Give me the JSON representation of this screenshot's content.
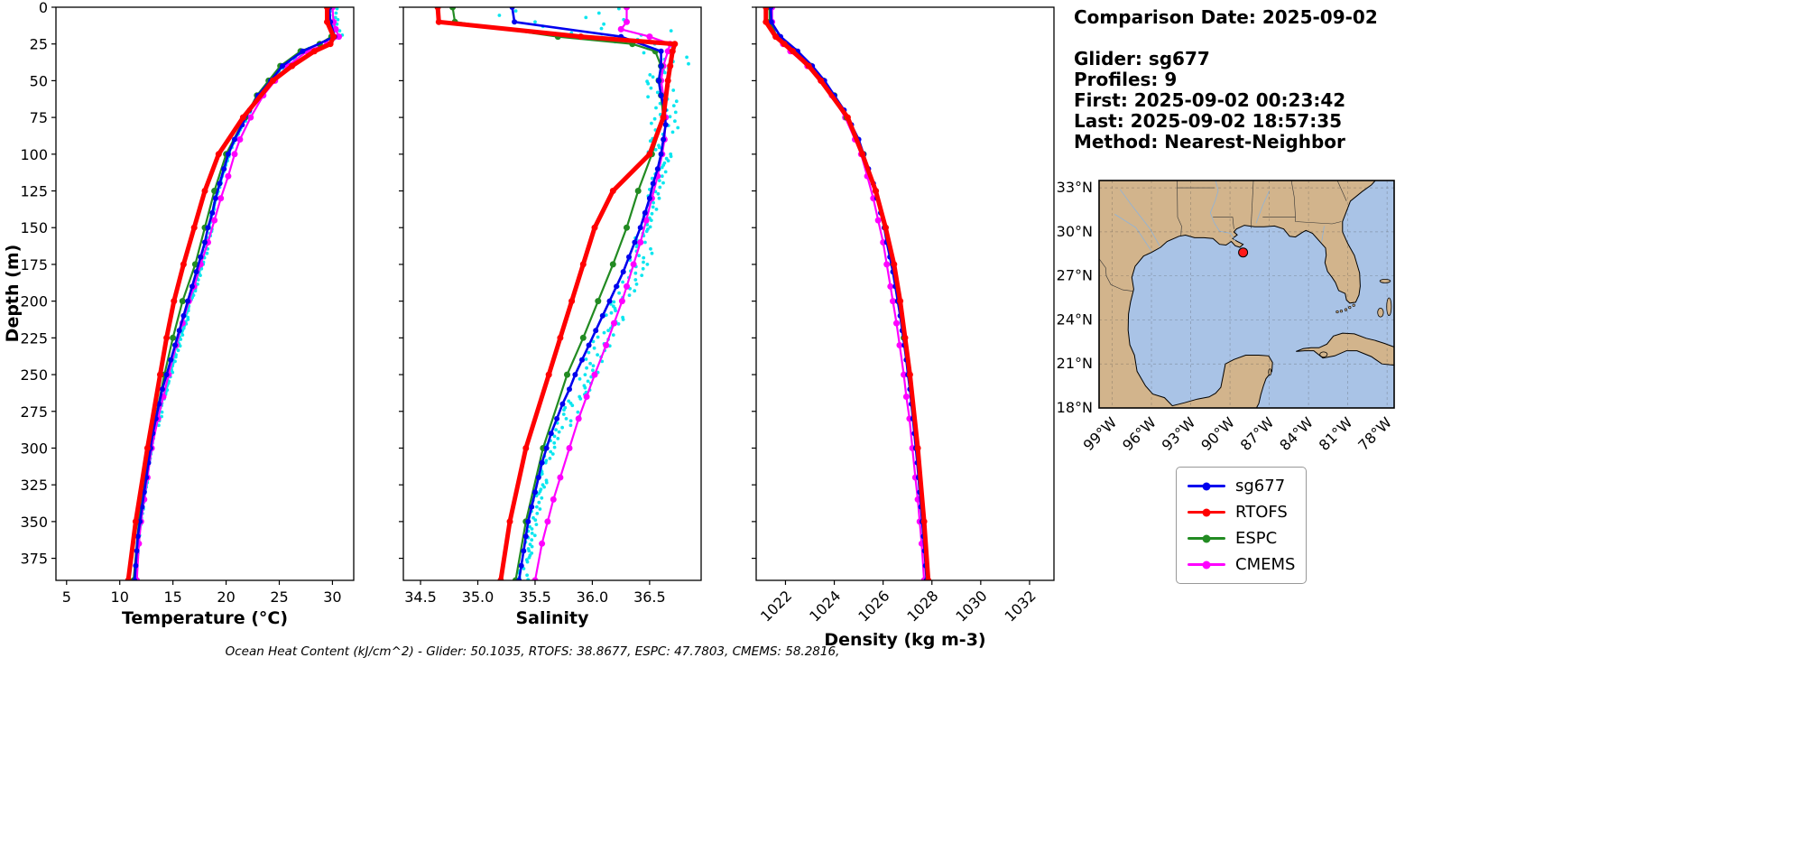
{
  "info": {
    "comparison_date": "Comparison Date: 2025-09-02",
    "glider": "Glider: sg677",
    "profiles": "Profiles: 9",
    "first": "First: 2025-09-02 00:23:42",
    "last": "Last: 2025-09-02 18:57:35",
    "method": "Method: Nearest-Neighbor"
  },
  "footer": {
    "text": "Ocean Heat Content (kJ/cm^2) - Glider: 50.1035,  RTOFS: 38.8677,  ESPC: 47.7803,  CMEMS: 58.2816,"
  },
  "legend": {
    "entries": [
      {
        "label": "sg677",
        "color": "#0000ee"
      },
      {
        "label": "RTOFS",
        "color": "#ff0000"
      },
      {
        "label": "ESPC",
        "color": "#228b22"
      },
      {
        "label": "CMEMS",
        "color": "#ff00ff"
      }
    ]
  },
  "map": {
    "ocean_color": "#a9c3e6",
    "land_color": "#d2b48c",
    "marker": {
      "lon": -89.0,
      "lat": 28.6,
      "color": "#ff1a1a"
    },
    "lat_ticks": [
      {
        "v": 33,
        "label": "33°N"
      },
      {
        "v": 30,
        "label": "30°N"
      },
      {
        "v": 27,
        "label": "27°N"
      },
      {
        "v": 24,
        "label": "24°N"
      },
      {
        "v": 21,
        "label": "21°N"
      },
      {
        "v": 18,
        "label": "18°N"
      }
    ],
    "lon_ticks": [
      {
        "v": -99,
        "label": "99°W"
      },
      {
        "v": -96,
        "label": "96°W"
      },
      {
        "v": -93,
        "label": "93°W"
      },
      {
        "v": -90,
        "label": "90°W"
      },
      {
        "v": -87,
        "label": "87°W"
      },
      {
        "v": -84,
        "label": "84°W"
      },
      {
        "v": -81,
        "label": "81°W"
      },
      {
        "v": -78,
        "label": "78°W"
      }
    ]
  },
  "chart_data": {
    "type": "line",
    "depth_label": "Depth (m)",
    "depth_lim": [
      0,
      390
    ],
    "depth_ticks": [
      0,
      25,
      50,
      75,
      100,
      125,
      150,
      175,
      200,
      225,
      250,
      275,
      300,
      325,
      350,
      375
    ],
    "panels": [
      {
        "key": "temperature",
        "xlabel": "Temperature (°C)",
        "xlim": [
          4,
          32
        ],
        "xticks": [
          5,
          10,
          15,
          20,
          25,
          30
        ],
        "xtick_labels": [
          "5",
          "10",
          "15",
          "20",
          "25",
          "30"
        ],
        "rotate_ticks": false
      },
      {
        "key": "salinity",
        "xlabel": "Salinity",
        "xlim": [
          34.35,
          36.95
        ],
        "xticks": [
          34.5,
          35.0,
          35.5,
          36.0,
          36.5
        ],
        "xtick_labels": [
          "34.5",
          "35.0",
          "35.5",
          "36.0",
          "36.5"
        ],
        "rotate_ticks": false
      },
      {
        "key": "density",
        "xlabel": "Density (kg m-3)",
        "xlim": [
          1020.8,
          1033.0
        ],
        "xticks": [
          1022,
          1024,
          1026,
          1028,
          1030,
          1032
        ],
        "xtick_labels": [
          "1022",
          "1024",
          "1026",
          "1028",
          "1030",
          "1032"
        ],
        "rotate_ticks": true
      }
    ],
    "series": [
      {
        "name": "sg677",
        "color": "#0000ee",
        "line_width": 2.6,
        "marker_size": 3,
        "depths": [
          0,
          10,
          20,
          30,
          40,
          50,
          60,
          70,
          80,
          90,
          100,
          110,
          120,
          130,
          140,
          150,
          160,
          170,
          180,
          190,
          200,
          210,
          220,
          230,
          240,
          250,
          260,
          270,
          280,
          290,
          300,
          310,
          320,
          330,
          340,
          350,
          360,
          370,
          380,
          390
        ],
        "temperature": [
          29.7,
          29.8,
          30.2,
          27.2,
          25.3,
          24.2,
          23.0,
          22.2,
          21.5,
          20.8,
          20.2,
          19.8,
          19.4,
          19.0,
          18.7,
          18.3,
          18.0,
          17.6,
          17.2,
          16.8,
          16.4,
          16.0,
          15.6,
          15.2,
          14.8,
          14.4,
          14.0,
          13.7,
          13.4,
          13.1,
          12.9,
          12.7,
          12.5,
          12.3,
          12.1,
          11.9,
          11.7,
          11.6,
          11.5,
          11.4
        ],
        "salinity": [
          35.3,
          35.32,
          36.25,
          36.6,
          36.6,
          36.58,
          36.6,
          36.63,
          36.64,
          36.62,
          36.6,
          36.57,
          36.53,
          36.5,
          36.46,
          36.42,
          36.37,
          36.32,
          36.27,
          36.21,
          36.15,
          36.09,
          36.03,
          35.97,
          35.91,
          35.85,
          35.8,
          35.74,
          35.69,
          35.64,
          35.6,
          35.56,
          35.53,
          35.5,
          35.47,
          35.44,
          35.42,
          35.4,
          35.38,
          35.36
        ],
        "density": [
          1021.4,
          1021.42,
          1021.8,
          1022.5,
          1023.1,
          1023.6,
          1024.0,
          1024.4,
          1024.7,
          1025.0,
          1025.2,
          1025.4,
          1025.6,
          1025.75,
          1025.9,
          1026.05,
          1026.15,
          1026.28,
          1026.4,
          1026.5,
          1026.6,
          1026.7,
          1026.78,
          1026.87,
          1026.95,
          1027.02,
          1027.1,
          1027.16,
          1027.22,
          1027.28,
          1027.34,
          1027.4,
          1027.45,
          1027.5,
          1027.55,
          1027.6,
          1027.65,
          1027.7,
          1027.74,
          1027.78
        ]
      },
      {
        "name": "RTOFS",
        "color": "#ff0000",
        "line_width": 5,
        "marker_size": 3.5,
        "depths": [
          0,
          10,
          20,
          25,
          30,
          40,
          50,
          75,
          100,
          125,
          150,
          175,
          200,
          225,
          250,
          300,
          350,
          390
        ],
        "temperature": [
          29.5,
          29.5,
          30.1,
          29.8,
          28.3,
          26.2,
          24.4,
          21.6,
          19.3,
          18.0,
          17.0,
          16.0,
          15.1,
          14.4,
          13.8,
          12.6,
          11.5,
          10.8
        ],
        "salinity": [
          34.65,
          34.66,
          35.9,
          36.72,
          36.7,
          36.68,
          36.66,
          36.62,
          36.5,
          36.18,
          36.02,
          35.92,
          35.82,
          35.72,
          35.62,
          35.42,
          35.28,
          35.2
        ],
        "density": [
          1021.2,
          1021.2,
          1021.6,
          1021.95,
          1022.3,
          1022.95,
          1023.45,
          1024.55,
          1025.15,
          1025.7,
          1026.1,
          1026.45,
          1026.7,
          1026.9,
          1027.1,
          1027.42,
          1027.68,
          1027.85
        ]
      },
      {
        "name": "ESPC",
        "color": "#228b22",
        "line_width": 2.2,
        "marker_size": 3.5,
        "depths": [
          0,
          10,
          20,
          25,
          30,
          40,
          50,
          60,
          75,
          100,
          125,
          150,
          175,
          200,
          225,
          250,
          300,
          350,
          390
        ],
        "temperature": [
          29.7,
          29.7,
          29.9,
          28.8,
          27.0,
          25.1,
          24.0,
          22.9,
          21.8,
          20.0,
          18.9,
          18.0,
          17.1,
          15.9,
          15.0,
          14.2,
          12.8,
          11.8,
          11.3
        ],
        "salinity": [
          34.78,
          34.8,
          35.7,
          36.35,
          36.55,
          36.6,
          36.58,
          36.6,
          36.62,
          36.52,
          36.4,
          36.3,
          36.18,
          36.05,
          35.92,
          35.78,
          35.57,
          35.42,
          35.33
        ],
        "density": [
          1021.35,
          1021.36,
          1021.65,
          1022.0,
          1022.4,
          1023.05,
          1023.55,
          1024.0,
          1024.5,
          1025.2,
          1025.7,
          1026.1,
          1026.4,
          1026.62,
          1026.85,
          1027.05,
          1027.36,
          1027.62,
          1027.8
        ]
      },
      {
        "name": "CMEMS",
        "color": "#ff00ff",
        "line_width": 2.2,
        "marker_size": 3.5,
        "depths": [
          0,
          10,
          15,
          20,
          25,
          30,
          40,
          50,
          60,
          75,
          90,
          100,
          115,
          130,
          145,
          160,
          175,
          190,
          200,
          215,
          230,
          250,
          265,
          280,
          300,
          320,
          335,
          350,
          365,
          390
        ],
        "temperature": [
          30.0,
          30.1,
          30.3,
          30.6,
          29.5,
          27.6,
          25.8,
          24.6,
          23.5,
          22.3,
          21.3,
          20.8,
          20.2,
          19.5,
          18.9,
          18.3,
          17.6,
          17.0,
          16.5,
          15.9,
          15.3,
          14.6,
          14.1,
          13.6,
          13.0,
          12.6,
          12.3,
          12.0,
          11.8,
          11.6
        ],
        "salinity": [
          36.3,
          36.3,
          36.25,
          36.5,
          36.68,
          36.66,
          36.62,
          36.6,
          36.62,
          36.64,
          36.63,
          36.61,
          36.57,
          36.52,
          36.47,
          36.42,
          36.36,
          36.3,
          36.26,
          36.19,
          36.12,
          36.02,
          35.95,
          35.88,
          35.8,
          35.72,
          35.66,
          35.61,
          35.56,
          35.5
        ],
        "density": [
          1021.45,
          1021.45,
          1021.5,
          1021.62,
          1021.9,
          1022.2,
          1022.9,
          1023.45,
          1023.9,
          1024.45,
          1024.85,
          1025.1,
          1025.35,
          1025.6,
          1025.8,
          1026.0,
          1026.15,
          1026.3,
          1026.4,
          1026.55,
          1026.68,
          1026.85,
          1026.95,
          1027.08,
          1027.2,
          1027.32,
          1027.42,
          1027.5,
          1027.58,
          1027.68
        ]
      }
    ],
    "glider_scatter": {
      "color": "#00e5ee",
      "marker_size": 1.9,
      "depth_step": 3,
      "panels": [
        "temperature",
        "salinity"
      ],
      "noise": [
        0.1,
        -0.6,
        0.8,
        -0.2,
        0.5,
        -0.9,
        0.3,
        0.95,
        -0.45,
        0.7,
        -0.8,
        0.15,
        0.6,
        -0.3,
        0.9,
        -0.7,
        0.25,
        -0.95,
        0.4,
        0.85,
        -0.15,
        0.55,
        -0.5,
        0.05,
        0.75,
        -0.85,
        0.35,
        -0.25,
        0.65,
        -0.4,
        0.2,
        0.9,
        -0.65,
        0.45,
        -0.1,
        0.3,
        -0.75
      ],
      "bands": {
        "temperature": [
          [
            0,
            25,
            0.4,
            0.4
          ],
          [
            25,
            150,
            0.07,
            0.0
          ],
          [
            150,
            285,
            0.18,
            0.28
          ],
          [
            285,
            391,
            0.08,
            0.05
          ]
        ],
        "salinity": [
          [
            0,
            18,
            0.6,
            0.45
          ],
          [
            18,
            40,
            0.3,
            0.0
          ],
          [
            40,
            100,
            0.13,
            0.0
          ],
          [
            100,
            160,
            0.06,
            0.03
          ],
          [
            160,
            285,
            0.09,
            0.1
          ],
          [
            285,
            391,
            0.05,
            0.03
          ]
        ]
      }
    }
  }
}
